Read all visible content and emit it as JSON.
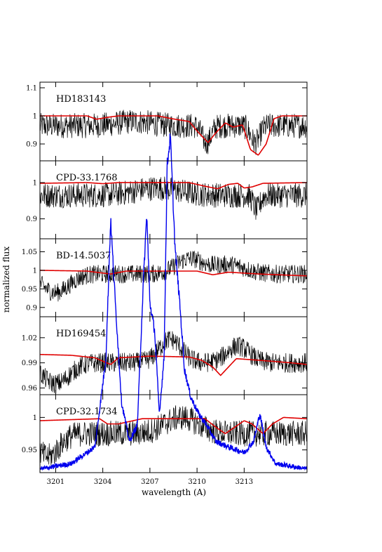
{
  "chart_data": {
    "type": "line",
    "xlabel": "wavelength (A)",
    "ylabel": "normalized flux",
    "xlim": [
      3200,
      3217
    ],
    "xticks": [
      3201,
      3204,
      3207,
      3210,
      3213
    ],
    "series_colors": {
      "observed": "#000000",
      "model": "#e00000",
      "overlay": "#0000ee"
    },
    "panels": [
      {
        "star": "HD183143",
        "ylim": [
          0.84,
          1.12
        ],
        "yticks": [
          0.9,
          1.0,
          1.1
        ],
        "ytick_labels": [
          "0.9",
          "1",
          "1.1"
        ],
        "observed_level": 0.965,
        "observed_noise": 0.045,
        "observed_features": [
          [
            3210.6,
            -0.06,
            0.4
          ],
          [
            3213.7,
            -0.06,
            0.4
          ],
          [
            3206.0,
            0.015,
            1.5
          ]
        ],
        "model": [
          [
            3200,
            1.0
          ],
          [
            3203.0,
            1.0
          ],
          [
            3203.6,
            0.988
          ],
          [
            3204.3,
            0.995
          ],
          [
            3205.0,
            1.0
          ],
          [
            3207.5,
            1.0
          ],
          [
            3208.4,
            0.99
          ],
          [
            3209.5,
            0.98
          ],
          [
            3210.1,
            0.94
          ],
          [
            3210.7,
            0.905
          ],
          [
            3211.2,
            0.94
          ],
          [
            3211.8,
            0.975
          ],
          [
            3212.3,
            0.96
          ],
          [
            3212.9,
            0.968
          ],
          [
            3213.4,
            0.88
          ],
          [
            3213.9,
            0.86
          ],
          [
            3214.4,
            0.9
          ],
          [
            3214.9,
            0.99
          ],
          [
            3215.4,
            1.0
          ],
          [
            3217,
            1.0
          ]
        ]
      },
      {
        "star": "CPD-33.1768",
        "ylim": [
          0.845,
          1.06
        ],
        "yticks": [
          0.9,
          1.0
        ],
        "ytick_labels": [
          "0.9",
          "1"
        ],
        "observed_level": 0.965,
        "observed_noise": 0.035,
        "observed_features": [
          [
            3207.5,
            0.02,
            2.0
          ],
          [
            3213.8,
            -0.04,
            0.3
          ]
        ],
        "model": [
          [
            3200,
            0.998
          ],
          [
            3203.0,
            1.0
          ],
          [
            3204.0,
            0.997
          ],
          [
            3205.0,
            1.0
          ],
          [
            3209.5,
            1.0
          ],
          [
            3210.5,
            0.99
          ],
          [
            3211.3,
            0.983
          ],
          [
            3212.0,
            0.995
          ],
          [
            3212.6,
            0.998
          ],
          [
            3213.0,
            0.985
          ],
          [
            3213.5,
            0.988
          ],
          [
            3214.2,
            0.998
          ],
          [
            3217,
            1.0
          ]
        ]
      },
      {
        "star": "BD-14.5037",
        "ylim": [
          0.875,
          1.085
        ],
        "yticks": [
          0.9,
          0.95,
          1.0,
          1.05
        ],
        "ytick_labels": [
          "0.9",
          "0.95",
          "1",
          "1.05"
        ],
        "observed_level": 0.99,
        "observed_noise": 0.025,
        "observed_features": [
          [
            3201.0,
            -0.05,
            1.2
          ],
          [
            3209.5,
            0.04,
            1.2
          ],
          [
            3212.0,
            0.025,
            1.5
          ]
        ],
        "model": [
          [
            3200,
            1.0
          ],
          [
            3203.0,
            0.998
          ],
          [
            3204.5,
            0.99
          ],
          [
            3205.5,
            0.998
          ],
          [
            3210.0,
            0.998
          ],
          [
            3211.0,
            0.988
          ],
          [
            3212.0,
            0.995
          ],
          [
            3214.0,
            0.99
          ],
          [
            3217,
            0.985
          ]
        ]
      },
      {
        "star": "HD169454",
        "ylim": [
          0.952,
          1.045
        ],
        "yticks": [
          0.96,
          0.99,
          1.02
        ],
        "ytick_labels": [
          "0.96",
          "0.99",
          "1.02"
        ],
        "observed_level": 0.99,
        "observed_noise": 0.012,
        "observed_features": [
          [
            3201.0,
            -0.025,
            1.2
          ],
          [
            3208.3,
            0.028,
            1.0
          ],
          [
            3212.6,
            0.02,
            1.0
          ]
        ],
        "model": [
          [
            3200,
            1.0
          ],
          [
            3202.0,
            0.999
          ],
          [
            3203.5,
            0.996
          ],
          [
            3204.5,
            0.988
          ],
          [
            3205.0,
            0.996
          ],
          [
            3207.0,
            0.998
          ],
          [
            3209.5,
            0.997
          ],
          [
            3210.3,
            0.993
          ],
          [
            3211.0,
            0.985
          ],
          [
            3211.5,
            0.975
          ],
          [
            3212.0,
            0.985
          ],
          [
            3212.5,
            0.995
          ],
          [
            3214.0,
            0.993
          ],
          [
            3216.0,
            0.99
          ],
          [
            3217,
            0.988
          ]
        ]
      },
      {
        "star": "CPD-32.1734",
        "ylim": [
          0.915,
          1.035
        ],
        "yticks": [
          0.95,
          1.0
        ],
        "ytick_labels": [
          "0.95",
          "1"
        ],
        "observed_level": 0.975,
        "observed_noise": 0.02,
        "observed_features": [
          [
            3200.5,
            -0.035,
            1.0
          ],
          [
            3209.0,
            0.025,
            1.5
          ]
        ],
        "model": [
          [
            3200,
            0.995
          ],
          [
            3203.8,
            0.998
          ],
          [
            3204.3,
            0.99
          ],
          [
            3205.0,
            0.99
          ],
          [
            3206.5,
            0.998
          ],
          [
            3210.5,
            0.998
          ],
          [
            3211.2,
            0.985
          ],
          [
            3211.8,
            0.975
          ],
          [
            3212.4,
            0.985
          ],
          [
            3213.0,
            0.995
          ],
          [
            3213.5,
            0.99
          ],
          [
            3214.2,
            0.975
          ],
          [
            3214.8,
            0.99
          ],
          [
            3215.5,
            1.0
          ],
          [
            3217,
            0.998
          ]
        ]
      }
    ],
    "overlay_curve": [
      [
        3200,
        0.0
      ],
      [
        3202.0,
        0.01
      ],
      [
        3203.5,
        0.04
      ],
      [
        3204.2,
        0.2
      ],
      [
        3204.5,
        0.45
      ],
      [
        3204.8,
        0.3
      ],
      [
        3205.2,
        0.12
      ],
      [
        3205.7,
        0.05
      ],
      [
        3206.2,
        0.08
      ],
      [
        3206.6,
        0.35
      ],
      [
        3206.8,
        0.46
      ],
      [
        3207.0,
        0.3
      ],
      [
        3207.3,
        0.25
      ],
      [
        3207.6,
        0.1
      ],
      [
        3207.9,
        0.2
      ],
      [
        3208.1,
        0.55
      ],
      [
        3208.3,
        0.6
      ],
      [
        3208.6,
        0.4
      ],
      [
        3208.9,
        0.3
      ],
      [
        3209.2,
        0.18
      ],
      [
        3209.6,
        0.13
      ],
      [
        3210.1,
        0.1
      ],
      [
        3210.6,
        0.08
      ],
      [
        3211.2,
        0.05
      ],
      [
        3212.0,
        0.04
      ],
      [
        3213.0,
        0.03
      ],
      [
        3213.6,
        0.05
      ],
      [
        3214.0,
        0.1
      ],
      [
        3214.4,
        0.04
      ],
      [
        3215.0,
        0.01
      ],
      [
        3217,
        0.0
      ]
    ]
  }
}
